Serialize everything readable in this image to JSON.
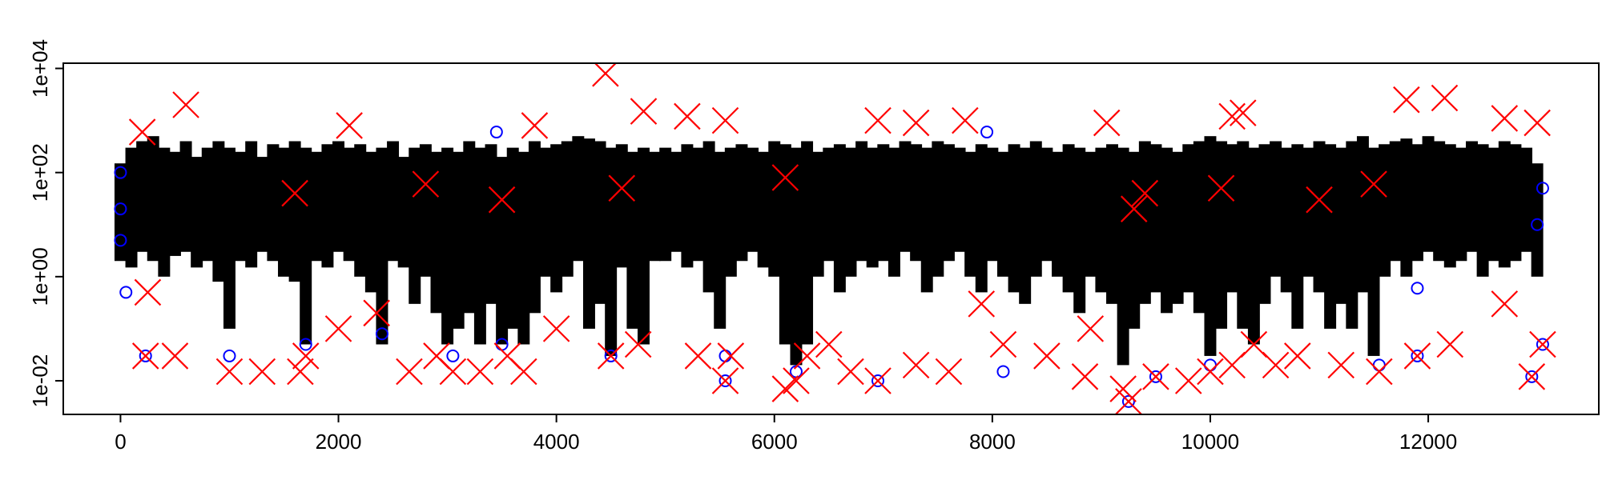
{
  "chart_data": {
    "type": "scatter",
    "log_y": true,
    "xlim": [
      -525,
      13565
    ],
    "xticks": [
      0,
      2000,
      4000,
      6000,
      8000,
      10000,
      12000
    ],
    "ylim": [
      0.00226,
      12600
    ],
    "yticks": [
      {
        "value": 0.01,
        "label": "1e-02"
      },
      {
        "value": 1,
        "label": "1e+00"
      },
      {
        "value": 100,
        "label": "1e+02"
      },
      {
        "value": 10000,
        "label": "1e+04"
      }
    ],
    "series": [
      {
        "color": "#000000",
        "x": [
          0,
          100,
          200,
          300,
          400,
          500,
          600,
          700,
          800,
          900,
          1000,
          1100,
          1200,
          1300,
          1400,
          1500,
          1600,
          1700,
          1800,
          1900,
          2000,
          2100,
          2200,
          2300,
          2400,
          2500,
          2600,
          2700,
          2800,
          2900,
          3000,
          3100,
          3200,
          3300,
          3400,
          3500,
          3600,
          3700,
          3800,
          3900,
          4000,
          4100,
          4200,
          4300,
          4400,
          4500,
          4600,
          4700,
          4800,
          4900,
          5000,
          5100,
          5200,
          5300,
          5400,
          5500,
          5600,
          5700,
          5800,
          5900,
          6000,
          6100,
          6200,
          6300,
          6400,
          6500,
          6600,
          6700,
          6800,
          6900,
          7000,
          7100,
          7200,
          7300,
          7400,
          7500,
          7600,
          7700,
          7800,
          7900,
          8000,
          8100,
          8200,
          8300,
          8400,
          8500,
          8600,
          8700,
          8800,
          8900,
          9000,
          9100,
          9200,
          9300,
          9400,
          9500,
          9600,
          9700,
          9800,
          9900,
          10000,
          10100,
          10200,
          10300,
          10400,
          10500,
          10600,
          10700,
          10800,
          10900,
          11000,
          11100,
          11200,
          11300,
          11400,
          11500,
          11600,
          11700,
          11800,
          11900,
          12000,
          12100,
          12200,
          12300,
          12400,
          12500,
          12600,
          12700,
          12800,
          12900,
          13000
        ],
        "low": [
          2,
          1.5,
          3,
          2,
          1,
          2.5,
          3,
          1.5,
          2,
          0.8,
          0.1,
          2,
          1.5,
          3,
          2,
          1,
          0.8,
          0.05,
          2,
          1.5,
          3,
          2,
          1,
          0.5,
          0.05,
          2,
          1.5,
          0.3,
          1,
          0.2,
          0.05,
          0.1,
          0.2,
          0.05,
          0.3,
          0.05,
          0.1,
          0.05,
          0.2,
          1,
          0.5,
          1,
          2,
          0.1,
          0.3,
          0.03,
          1.5,
          0.1,
          0.05,
          2,
          2,
          3,
          1.5,
          2,
          0.5,
          0.1,
          1,
          2,
          3,
          1.5,
          1,
          0.05,
          0.02,
          0.05,
          1,
          2,
          0.5,
          1,
          2,
          1.5,
          2,
          1,
          3,
          2,
          0.5,
          1,
          2,
          3,
          1,
          0.5,
          2,
          1,
          0.5,
          0.3,
          1,
          2,
          1,
          0.5,
          0.2,
          1,
          0.5,
          0.3,
          0.02,
          0.1,
          0.3,
          0.5,
          0.2,
          0.3,
          0.5,
          0.2,
          0.03,
          0.1,
          0.5,
          0.1,
          0.05,
          0.3,
          1,
          0.5,
          0.1,
          1,
          0.5,
          0.1,
          0.3,
          0.1,
          0.5,
          0.03,
          1,
          2,
          1,
          2,
          3,
          2,
          1.5,
          2,
          3,
          1,
          2,
          1.5,
          2,
          3,
          1
        ],
        "high": [
          150,
          300,
          400,
          500,
          300,
          250,
          400,
          200,
          300,
          400,
          300,
          250,
          400,
          200,
          350,
          300,
          400,
          300,
          250,
          350,
          400,
          300,
          350,
          250,
          300,
          400,
          200,
          300,
          350,
          250,
          300,
          250,
          400,
          300,
          350,
          200,
          300,
          250,
          400,
          300,
          350,
          400,
          500,
          450,
          400,
          300,
          350,
          250,
          300,
          250,
          300,
          250,
          350,
          300,
          400,
          250,
          300,
          350,
          300,
          250,
          400,
          350,
          300,
          400,
          250,
          300,
          350,
          300,
          400,
          300,
          350,
          300,
          400,
          350,
          300,
          400,
          350,
          300,
          250,
          350,
          300,
          250,
          350,
          300,
          400,
          300,
          250,
          350,
          300,
          250,
          300,
          350,
          300,
          250,
          400,
          350,
          300,
          250,
          350,
          400,
          500,
          400,
          350,
          400,
          300,
          350,
          400,
          300,
          350,
          300,
          400,
          350,
          300,
          400,
          500,
          300,
          350,
          400,
          450,
          350,
          500,
          400,
          350,
          300,
          400,
          350,
          300,
          400,
          350,
          300,
          150
        ]
      },
      {
        "color": "#0000ff",
        "marker": "circle",
        "x": [
          0,
          0,
          0,
          50,
          230,
          1000,
          1700,
          2400,
          3050,
          3500,
          4500,
          5550,
          5550,
          6200,
          6950,
          8100,
          9250,
          9500,
          10000,
          11550,
          11900,
          12950,
          13050,
          13000,
          13050,
          11900,
          3450,
          7950
        ],
        "values": [
          20,
          5,
          100,
          0.5,
          0.03,
          0.03,
          0.05,
          0.08,
          0.03,
          0.05,
          0.03,
          0.03,
          0.01,
          0.015,
          0.01,
          0.015,
          0.004,
          0.012,
          0.02,
          0.02,
          0.03,
          0.012,
          0.05,
          10,
          50,
          0.6,
          600,
          600
        ]
      },
      {
        "color": "#ff0000",
        "marker": "x",
        "x": [
          600,
          4450,
          4800,
          5200,
          5550,
          6950,
          7300,
          7750,
          9050,
          10200,
          10300,
          11800,
          12150,
          12700,
          13000,
          3800,
          2100,
          200,
          250,
          230,
          500,
          1000,
          1300,
          1650,
          1700,
          2000,
          2350,
          2650,
          2900,
          3050,
          3300,
          3550,
          3700,
          4000,
          4500,
          4750,
          5300,
          5550,
          5600,
          6100,
          6200,
          6300,
          6500,
          6700,
          6950,
          7300,
          7600,
          8100,
          8500,
          8850,
          9250,
          9200,
          9500,
          9800,
          10000,
          10200,
          10400,
          10600,
          10800,
          11200,
          11550,
          11900,
          12200,
          12700,
          12950,
          13050,
          7900,
          8900,
          1600,
          2800,
          3500,
          4600,
          6100,
          9300,
          9400,
          11000,
          11500,
          10100
        ],
        "values": [
          2000,
          8000,
          1500,
          1200,
          1000,
          1000,
          900,
          1000,
          900,
          1200,
          1400,
          2500,
          2700,
          1100,
          900,
          800,
          800,
          600,
          0.5,
          0.03,
          0.03,
          0.015,
          0.015,
          0.015,
          0.03,
          0.1,
          0.2,
          0.015,
          0.03,
          0.015,
          0.015,
          0.03,
          0.015,
          0.1,
          0.03,
          0.05,
          0.03,
          0.01,
          0.03,
          0.007,
          0.01,
          0.03,
          0.05,
          0.015,
          0.01,
          0.02,
          0.015,
          0.05,
          0.03,
          0.012,
          0.004,
          0.007,
          0.012,
          0.01,
          0.015,
          0.02,
          0.05,
          0.02,
          0.03,
          0.02,
          0.015,
          0.03,
          0.05,
          0.3,
          0.012,
          0.05,
          0.3,
          0.1,
          40,
          60,
          30,
          50,
          80,
          20,
          40,
          30,
          60,
          50
        ]
      }
    ]
  }
}
